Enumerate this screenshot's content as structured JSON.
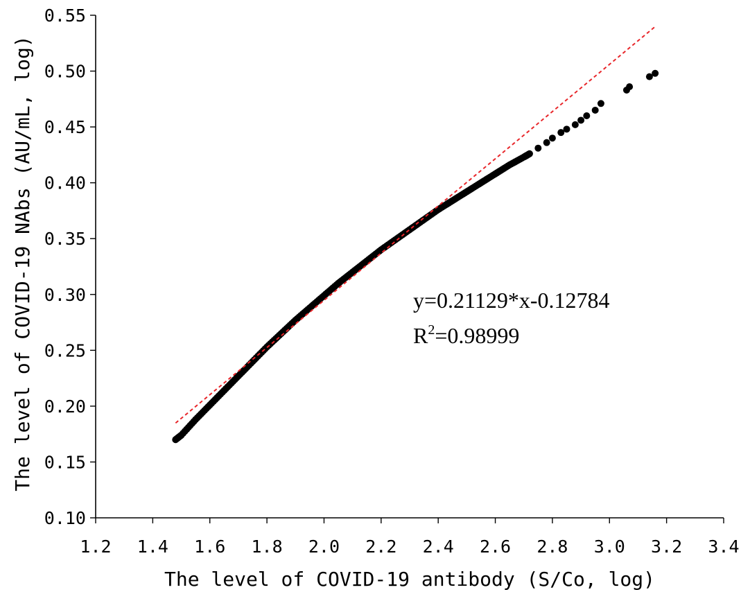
{
  "chart_data": {
    "type": "scatter",
    "xlabel": "The level of COVID-19 antibody (S/Co, log)",
    "ylabel": "The level of COVID-19 NAbs (AU/mL, log)",
    "xlim": [
      1.2,
      3.4
    ],
    "ylim": [
      0.1,
      0.55
    ],
    "x_ticks": [
      "1.2",
      "1.4",
      "1.6",
      "1.8",
      "2.0",
      "2.2",
      "2.4",
      "2.6",
      "2.8",
      "3.0",
      "3.2",
      "3.4"
    ],
    "y_ticks": [
      "0.10",
      "0.15",
      "0.20",
      "0.25",
      "0.30",
      "0.35",
      "0.40",
      "0.45",
      "0.50",
      "0.55"
    ],
    "grid": false,
    "points_color": "#000000",
    "series": [
      {
        "kind": "points",
        "description_curve": "dense points along a concave curve",
        "x": [
          1.48,
          1.5,
          1.55,
          1.6,
          1.65,
          1.7,
          1.75,
          1.8,
          1.85,
          1.9,
          1.95,
          2.0,
          2.05,
          2.1,
          2.15,
          2.2,
          2.25,
          2.3,
          2.35,
          2.4,
          2.45,
          2.5,
          2.55,
          2.6,
          2.65,
          2.7,
          2.72,
          2.75,
          2.78,
          2.8,
          2.83,
          2.85,
          2.88,
          2.9,
          2.92,
          2.95,
          2.97,
          3.06,
          3.07,
          3.14,
          3.16
        ],
        "y": [
          0.17,
          0.174,
          0.188,
          0.201,
          0.214,
          0.227,
          0.24,
          0.253,
          0.265,
          0.277,
          0.288,
          0.299,
          0.31,
          0.32,
          0.33,
          0.34,
          0.349,
          0.358,
          0.367,
          0.376,
          0.384,
          0.392,
          0.4,
          0.408,
          0.416,
          0.423,
          0.426,
          0.431,
          0.436,
          0.44,
          0.445,
          0.448,
          0.452,
          0.456,
          0.46,
          0.465,
          0.471,
          0.483,
          0.486,
          0.495,
          0.498
        ]
      }
    ],
    "fit_line": {
      "style": "dashed",
      "color": "#e8262a",
      "slope": 0.21129,
      "intercept": -0.12784,
      "x_range": [
        1.48,
        3.16
      ]
    },
    "annotation": {
      "equation": "y=0.21129*x-0.12784",
      "r2_prefix": "R",
      "r2_sup": "2",
      "r2_value": "=0.98999"
    }
  }
}
